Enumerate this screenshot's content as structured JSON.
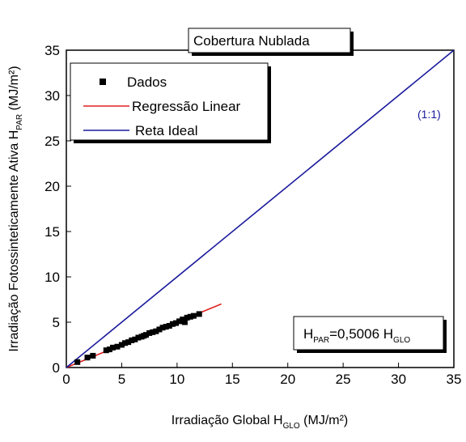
{
  "chart_data": {
    "type": "scatter",
    "title": "Cobertura Nublada",
    "xlabel": {
      "main": "Irradiação Global H",
      "sub": "GLO",
      "unit": " (MJ/m²)"
    },
    "ylabel": {
      "main": "Irradiação Fotossinteticamente Ativa H",
      "sub": "PAR",
      "unit": " (MJ/m²)"
    },
    "xlim": [
      0,
      35
    ],
    "ylim": [
      0,
      35
    ],
    "xticks": [
      0,
      5,
      10,
      15,
      20,
      25,
      30,
      35
    ],
    "yticks": [
      0,
      5,
      10,
      15,
      20,
      25,
      30,
      35
    ],
    "grid": false,
    "legend_position": "top-left",
    "legend": [
      {
        "label": "Dados",
        "kind": "marker",
        "color": "#000000"
      },
      {
        "label": "Regressão Linear",
        "kind": "line",
        "color": "#e02020"
      },
      {
        "label": "Reta Ideal",
        "kind": "line",
        "color": "#1a1a9c"
      }
    ],
    "series": [
      {
        "name": "Dados",
        "kind": "scatter",
        "color": "#000000",
        "points": [
          [
            1.0,
            0.6
          ],
          [
            1.9,
            1.1
          ],
          [
            2.4,
            1.3
          ],
          [
            3.6,
            1.9
          ],
          [
            3.9,
            2.0
          ],
          [
            4.2,
            2.2
          ],
          [
            4.6,
            2.3
          ],
          [
            5.0,
            2.5
          ],
          [
            5.3,
            2.7
          ],
          [
            5.6,
            2.8
          ],
          [
            5.9,
            3.0
          ],
          [
            6.2,
            3.1
          ],
          [
            6.5,
            3.3
          ],
          [
            6.8,
            3.4
          ],
          [
            7.0,
            3.5
          ],
          [
            7.2,
            3.6
          ],
          [
            7.5,
            3.8
          ],
          [
            7.8,
            3.9
          ],
          [
            8.1,
            4.0
          ],
          [
            8.4,
            4.2
          ],
          [
            8.7,
            4.4
          ],
          [
            9.0,
            4.5
          ],
          [
            9.3,
            4.6
          ],
          [
            9.6,
            4.8
          ],
          [
            9.9,
            4.9
          ],
          [
            10.2,
            5.1
          ],
          [
            10.5,
            5.3
          ],
          [
            10.7,
            5.0
          ],
          [
            10.9,
            5.5
          ],
          [
            11.2,
            5.6
          ],
          [
            11.5,
            5.7
          ],
          [
            12.0,
            5.9
          ]
        ]
      },
      {
        "name": "Regressão Linear",
        "kind": "line",
        "color": "#e02020",
        "x": [
          0,
          14
        ],
        "y": [
          0,
          7.0084
        ]
      },
      {
        "name": "Reta Ideal",
        "kind": "line",
        "color": "#1a1a9c",
        "x": [
          0,
          35
        ],
        "y": [
          0,
          35
        ]
      }
    ],
    "annotations": [
      {
        "text": "(1:1)",
        "color": "#1a1a9c"
      },
      {
        "equation": {
          "left": "H",
          "left_sub": "PAR",
          "mid": "=0,5006 H",
          "right_sub": "GLO"
        }
      }
    ]
  }
}
